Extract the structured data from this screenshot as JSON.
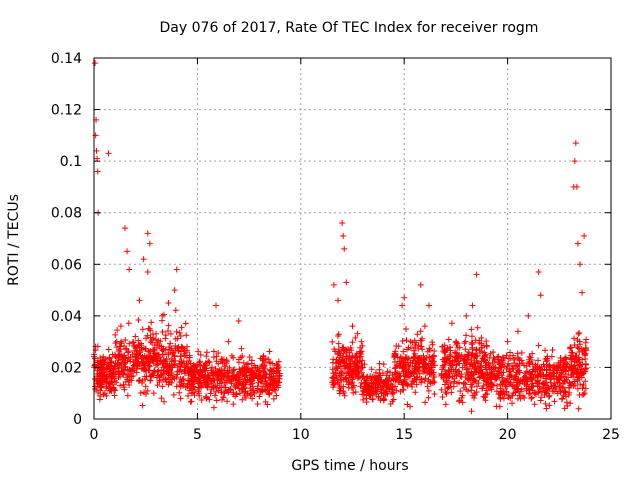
{
  "chart_data": {
    "type": "scatter",
    "title": "Day 076 of 2017, Rate Of TEC Index for receiver rogm",
    "xlabel": "GPS time / hours",
    "ylabel": "ROTI / TECUs",
    "xlim": [
      0,
      25
    ],
    "ylim": [
      0,
      0.14
    ],
    "xticks": [
      0,
      5,
      10,
      15,
      20,
      25
    ],
    "xtick_labels": [
      "0",
      "5",
      "10",
      "15",
      "20",
      "25"
    ],
    "yticks": [
      0,
      0.02,
      0.04,
      0.06,
      0.08,
      0.1,
      0.12,
      0.14
    ],
    "ytick_labels": [
      "0",
      "0.02",
      "0.04",
      "0.06",
      "0.08",
      "0.1",
      "0.12",
      "0.14"
    ],
    "grid": true,
    "marker": "+",
    "color": "#ff0000",
    "series": [
      {
        "name": "ROTI",
        "points": [
          [
            0.05,
            0.138
          ],
          [
            0.08,
            0.11
          ],
          [
            0.1,
            0.116
          ],
          [
            0.12,
            0.104
          ],
          [
            0.15,
            0.101
          ],
          [
            0.18,
            0.096
          ],
          [
            0.2,
            0.08
          ],
          [
            0.3,
            0.022
          ],
          [
            0.5,
            0.018
          ],
          [
            0.7,
            0.103
          ],
          [
            0.9,
            0.025
          ],
          [
            1.1,
            0.03
          ],
          [
            1.3,
            0.036
          ],
          [
            1.5,
            0.074
          ],
          [
            1.6,
            0.065
          ],
          [
            1.7,
            0.058
          ],
          [
            2.0,
            0.032
          ],
          [
            2.2,
            0.046
          ],
          [
            2.4,
            0.062
          ],
          [
            2.6,
            0.057
          ],
          [
            2.6,
            0.072
          ],
          [
            2.7,
            0.068
          ],
          [
            3.0,
            0.033
          ],
          [
            3.3,
            0.04
          ],
          [
            3.6,
            0.045
          ],
          [
            3.9,
            0.05
          ],
          [
            4.0,
            0.058
          ],
          [
            4.5,
            0.028
          ],
          [
            5.2,
            0.018
          ],
          [
            5.8,
            0.024
          ],
          [
            5.9,
            0.044
          ],
          [
            6.5,
            0.03
          ],
          [
            7.0,
            0.038
          ],
          [
            7.5,
            0.018
          ],
          [
            8.0,
            0.016
          ],
          [
            8.5,
            0.022
          ],
          [
            8.9,
            0.014
          ],
          [
            11.6,
            0.052
          ],
          [
            11.8,
            0.046
          ],
          [
            12.0,
            0.076
          ],
          [
            12.05,
            0.071
          ],
          [
            12.1,
            0.066
          ],
          [
            12.2,
            0.053
          ],
          [
            12.5,
            0.036
          ],
          [
            13.0,
            0.02
          ],
          [
            13.5,
            0.012
          ],
          [
            14.0,
            0.008
          ],
          [
            14.5,
            0.024
          ],
          [
            14.9,
            0.044
          ],
          [
            15.0,
            0.047
          ],
          [
            15.3,
            0.03
          ],
          [
            15.8,
            0.052
          ],
          [
            16.0,
            0.036
          ],
          [
            16.2,
            0.044
          ],
          [
            16.4,
            0.018
          ],
          [
            17.0,
            0.022
          ],
          [
            17.5,
            0.03
          ],
          [
            18.0,
            0.04
          ],
          [
            18.3,
            0.044
          ],
          [
            18.5,
            0.056
          ],
          [
            19.0,
            0.028
          ],
          [
            19.5,
            0.024
          ],
          [
            20.0,
            0.03
          ],
          [
            20.5,
            0.034
          ],
          [
            21.0,
            0.04
          ],
          [
            21.5,
            0.057
          ],
          [
            21.6,
            0.048
          ],
          [
            22.0,
            0.02
          ],
          [
            22.5,
            0.014
          ],
          [
            23.0,
            0.02
          ],
          [
            23.2,
            0.09
          ],
          [
            23.25,
            0.1
          ],
          [
            23.3,
            0.107
          ],
          [
            23.35,
            0.09
          ],
          [
            23.4,
            0.068
          ],
          [
            23.5,
            0.06
          ],
          [
            23.6,
            0.049
          ],
          [
            23.7,
            0.071
          ]
        ],
        "bands": [
          {
            "x": [
              0.0,
              1.0
            ],
            "y_center": 0.018,
            "y_spread": 0.008,
            "n": 160
          },
          {
            "x": [
              1.0,
              4.5
            ],
            "y_center": 0.022,
            "y_spread": 0.012,
            "n": 420
          },
          {
            "x": [
              4.5,
              9.0
            ],
            "y_center": 0.016,
            "y_spread": 0.008,
            "n": 520
          },
          {
            "x": [
              11.5,
              13.0
            ],
            "y_center": 0.02,
            "y_spread": 0.01,
            "n": 200
          },
          {
            "x": [
              13.0,
              14.5
            ],
            "y_center": 0.013,
            "y_spread": 0.006,
            "n": 160
          },
          {
            "x": [
              14.5,
              16.5
            ],
            "y_center": 0.02,
            "y_spread": 0.01,
            "n": 240
          },
          {
            "x": [
              16.8,
              19.0
            ],
            "y_center": 0.02,
            "y_spread": 0.011,
            "n": 280
          },
          {
            "x": [
              19.0,
              23.0
            ],
            "y_center": 0.016,
            "y_spread": 0.009,
            "n": 440
          },
          {
            "x": [
              23.0,
              23.8
            ],
            "y_center": 0.02,
            "y_spread": 0.012,
            "n": 120
          }
        ]
      }
    ]
  }
}
